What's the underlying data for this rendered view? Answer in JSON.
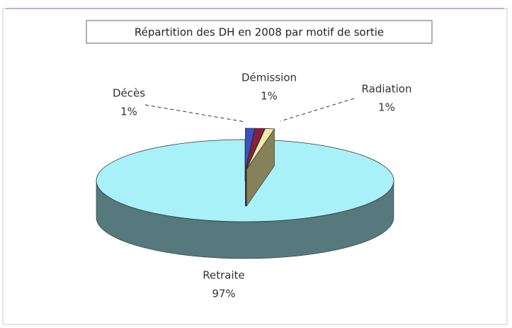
{
  "chart_data": {
    "type": "pie",
    "title": "Répartition des DH en 2008 par motif de sortie",
    "categories": [
      "Décès",
      "Démission",
      "Radiation",
      "Retraite"
    ],
    "values": [
      1,
      1,
      1,
      97
    ],
    "value_labels": [
      "1%",
      "1%",
      "1%",
      "97%"
    ],
    "colors": [
      "#3b50c4",
      "#8e1c3e",
      "#f2eaa4",
      "#a9f1f8"
    ]
  }
}
